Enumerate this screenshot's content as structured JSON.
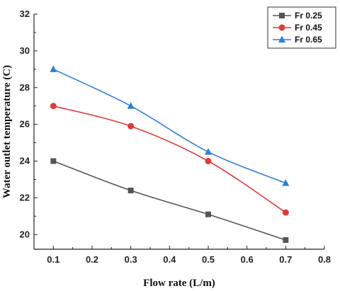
{
  "chart_data": {
    "type": "line",
    "xlabel": "Flow rate (L/m)",
    "ylabel": "Water outlet temperature (C)",
    "xlim": [
      0.05,
      0.8
    ],
    "ylim": [
      19.2,
      32
    ],
    "xticks": [
      0.1,
      0.2,
      0.3,
      0.4,
      0.5,
      0.6,
      0.7,
      0.8
    ],
    "xtick_labels": [
      "0.1",
      "0.2",
      "0.3",
      "0.4",
      "0.5",
      "0.6",
      "0.7",
      "0.8"
    ],
    "yticks": [
      20,
      22,
      24,
      26,
      28,
      30,
      32
    ],
    "ytick_labels": [
      "20",
      "22",
      "24",
      "26",
      "28",
      "30",
      "32"
    ],
    "legend_position": "top-right",
    "grid": false,
    "x": [
      0.1,
      0.3,
      0.5,
      0.7
    ],
    "series": [
      {
        "name": "Fr 0.25",
        "values": [
          24.0,
          22.4,
          21.1,
          19.7
        ],
        "color": "#555555",
        "marker": "square"
      },
      {
        "name": "Fr 0.45",
        "values": [
          27.0,
          25.9,
          24.0,
          21.2
        ],
        "color": "#e03a3a",
        "marker": "circle"
      },
      {
        "name": "Fr 0.65",
        "values": [
          29.0,
          27.0,
          24.5,
          22.8
        ],
        "color": "#2f7fd6",
        "marker": "triangle"
      }
    ]
  }
}
